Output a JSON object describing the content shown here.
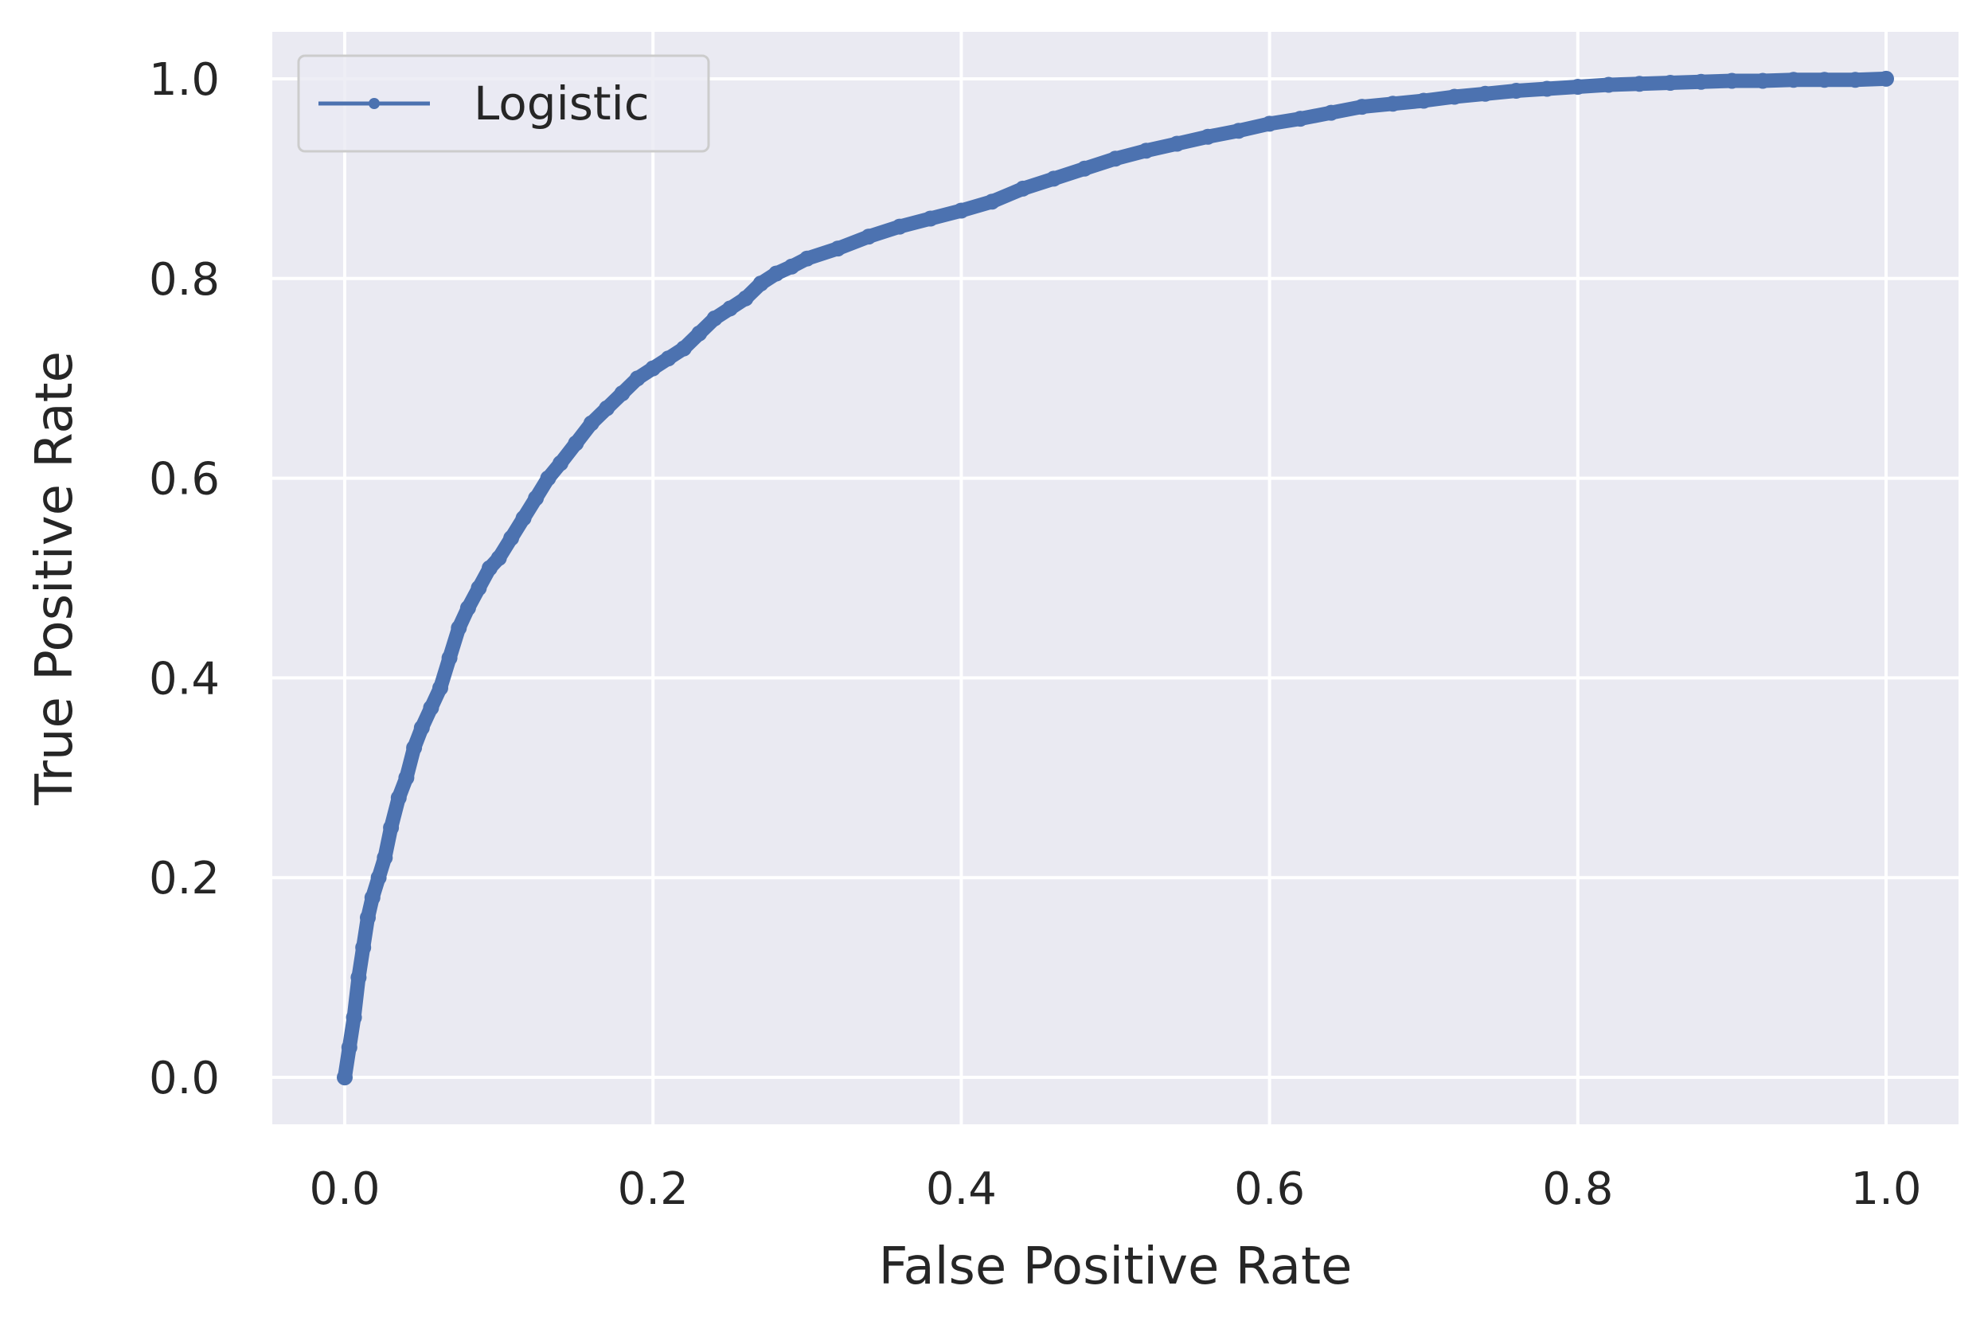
{
  "chart_data": {
    "type": "line",
    "title": "",
    "xlabel": "False Positive Rate",
    "ylabel": "True Positive Rate",
    "xlim": [
      -0.047,
      1.047
    ],
    "ylim": [
      -0.047,
      1.047
    ],
    "x_ticks": [
      "0.0",
      "0.2",
      "0.4",
      "0.6",
      "0.8",
      "1.0"
    ],
    "y_ticks": [
      "0.0",
      "0.2",
      "0.4",
      "0.6",
      "0.8",
      "1.0"
    ],
    "grid": true,
    "legend_position": "upper-left",
    "colors": {
      "series": "#4c72b0",
      "plot_background": "#eaeaf2",
      "grid": "#ffffff"
    },
    "series": [
      {
        "name": "Logistic",
        "marker": "point",
        "x": [
          0.0,
          0.003,
          0.006,
          0.009,
          0.012,
          0.015,
          0.018,
          0.022,
          0.026,
          0.03,
          0.035,
          0.04,
          0.045,
          0.05,
          0.056,
          0.062,
          0.068,
          0.074,
          0.08,
          0.087,
          0.094,
          0.1,
          0.108,
          0.116,
          0.124,
          0.132,
          0.14,
          0.15,
          0.16,
          0.17,
          0.18,
          0.19,
          0.2,
          0.21,
          0.22,
          0.23,
          0.24,
          0.25,
          0.26,
          0.27,
          0.28,
          0.29,
          0.3,
          0.32,
          0.34,
          0.36,
          0.38,
          0.4,
          0.42,
          0.44,
          0.46,
          0.48,
          0.5,
          0.52,
          0.54,
          0.56,
          0.58,
          0.6,
          0.62,
          0.64,
          0.66,
          0.68,
          0.7,
          0.72,
          0.74,
          0.76,
          0.78,
          0.8,
          0.82,
          0.84,
          0.86,
          0.88,
          0.9,
          0.92,
          0.94,
          0.96,
          0.98,
          1.0
        ],
        "y": [
          0.0,
          0.03,
          0.06,
          0.1,
          0.13,
          0.16,
          0.18,
          0.2,
          0.22,
          0.25,
          0.28,
          0.3,
          0.33,
          0.35,
          0.37,
          0.39,
          0.42,
          0.45,
          0.47,
          0.49,
          0.51,
          0.52,
          0.54,
          0.56,
          0.58,
          0.6,
          0.615,
          0.635,
          0.655,
          0.67,
          0.685,
          0.7,
          0.71,
          0.72,
          0.73,
          0.745,
          0.76,
          0.77,
          0.78,
          0.795,
          0.805,
          0.812,
          0.82,
          0.83,
          0.842,
          0.852,
          0.86,
          0.868,
          0.877,
          0.89,
          0.9,
          0.91,
          0.92,
          0.928,
          0.935,
          0.942,
          0.948,
          0.955,
          0.96,
          0.966,
          0.972,
          0.975,
          0.978,
          0.982,
          0.985,
          0.988,
          0.99,
          0.992,
          0.994,
          0.995,
          0.996,
          0.997,
          0.998,
          0.998,
          0.999,
          0.999,
          0.999,
          1.0
        ]
      }
    ]
  }
}
